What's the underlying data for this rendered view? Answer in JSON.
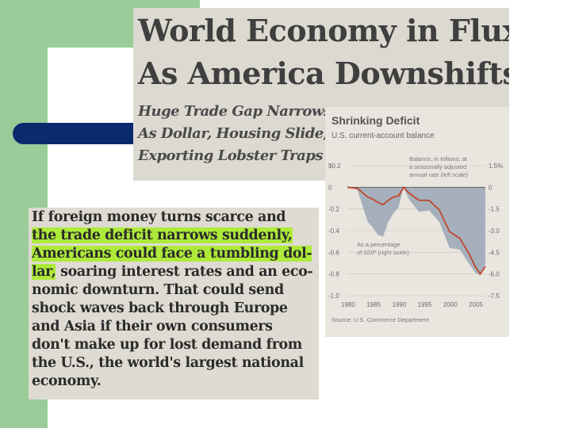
{
  "colors": {
    "slide_green": "#99cc99",
    "slide_blue": "#0a2a6e",
    "highlight": "#aeea3a",
    "chart_line": "#c0462c",
    "chart_fill": "#9aa6b6"
  },
  "headline": {
    "line1": "World Economy in Flux",
    "line2": "As America Downshifts",
    "sub1": "Huge Trade Gap Narrows",
    "sub2": "As Dollar, Housing Slide;",
    "sub3": "Exporting Lobster Traps"
  },
  "chart": {
    "title": "Shrinking Deficit",
    "subtitle": "U.S. current-account balance",
    "balance_label": [
      "Balance, in trillions; at",
      "a seasonally adjusted",
      "annual rate (left scale)"
    ],
    "pct_label": [
      "As a percentage",
      "of GDP (right scale)"
    ],
    "source": "Source: U.S. Commerce Department"
  },
  "paragraph": {
    "line1": "If foreign money turns scarce and",
    "line2": "the trade deficit narrows suddenly,",
    "line3": "Americans could face a tumbling dol-",
    "line4a": "lar,",
    "line4b": " soaring interest rates and an eco-",
    "line5": "nomic downturn. That could send",
    "line6": "shock waves back through Europe",
    "line7": "and Asia if their own consumers",
    "line8": "don't make up for lost demand from",
    "line9": "the U.S., the world's largest national",
    "line10": "economy."
  },
  "chart_data": {
    "type": "area",
    "title": "Shrinking Deficit",
    "subtitle": "U.S. current-account balance",
    "xlim": [
      1980,
      2007
    ],
    "x_ticks": [
      "1980",
      "1985",
      "1990",
      "1995",
      "2000",
      "2005"
    ],
    "left_ticks": [
      "$0.2",
      "0",
      "-0.2",
      "-0.4",
      "-0.6",
      "-0.8",
      "-1.0"
    ],
    "right_ticks": [
      "1.5%",
      "0",
      "-1.5",
      "-3.0",
      "-4.5",
      "-6.0",
      "-7.5"
    ],
    "ylim_left": [
      -1.0,
      0.2
    ],
    "ylim_right": [
      -7.5,
      1.5
    ],
    "series": [
      {
        "name": "Balance, in trillions; at a seasonally adjusted annual rate (left scale)",
        "axis": "left",
        "x": [
          1980,
          1982,
          1984,
          1985,
          1986,
          1987,
          1988,
          1989,
          1990,
          1991,
          1992,
          1994,
          1996,
          1998,
          2000,
          2002,
          2004,
          2005,
          2006,
          2007
        ],
        "values": [
          0.0,
          -0.01,
          -0.09,
          -0.11,
          -0.14,
          -0.16,
          -0.12,
          -0.09,
          -0.08,
          0.0,
          -0.05,
          -0.12,
          -0.12,
          -0.21,
          -0.41,
          -0.47,
          -0.63,
          -0.73,
          -0.8,
          -0.73
        ]
      },
      {
        "name": "As a percentage of GDP (right scale)",
        "axis": "right",
        "x": [
          1980,
          1982,
          1984,
          1985,
          1986,
          1987,
          1988,
          1989,
          1990,
          1991,
          1992,
          1994,
          1996,
          1998,
          2000,
          2002,
          2004,
          2005,
          2006,
          2007
        ],
        "values": [
          0.1,
          -0.2,
          -2.4,
          -2.8,
          -3.3,
          -3.4,
          -2.4,
          -1.8,
          -1.4,
          0.0,
          -0.8,
          -1.7,
          -1.6,
          -2.4,
          -4.2,
          -4.3,
          -5.4,
          -5.9,
          -6.1,
          -5.3
        ]
      }
    ]
  }
}
